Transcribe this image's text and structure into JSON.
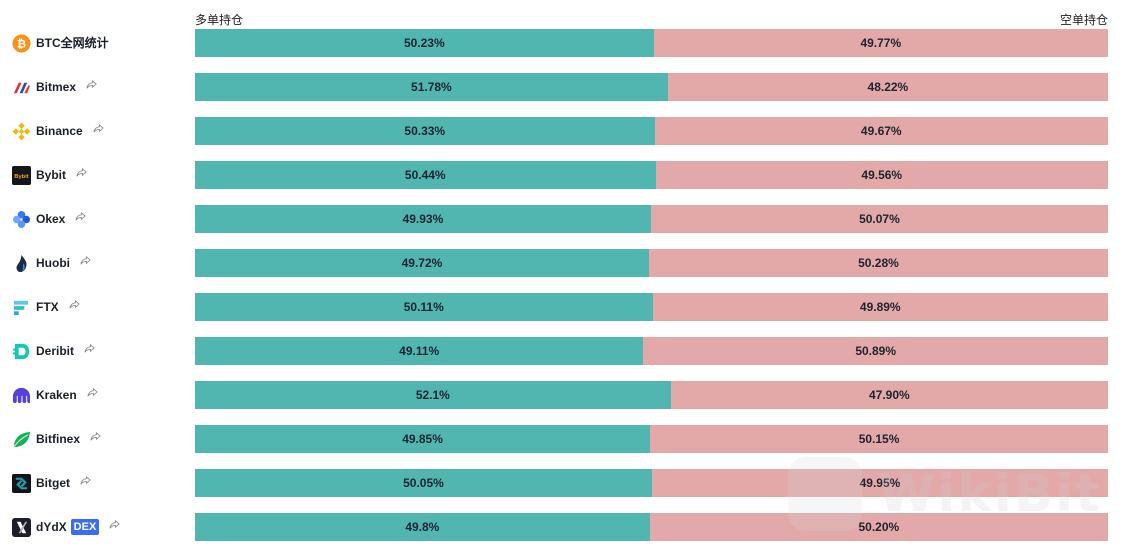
{
  "header": {
    "long_label": "多单持仓",
    "short_label": "空单持仓"
  },
  "watermark": {
    "text": "WikiBit"
  },
  "colors": {
    "long": "#52b6b0",
    "short": "#e3a9a9",
    "dex_badge": "#3a6df0"
  },
  "rows": [
    {
      "name": "BTC全网统计",
      "icon": "bitcoin-icon",
      "long_pct": 50.23,
      "long_text": "50.23%",
      "short_text": "49.77%",
      "share": false
    },
    {
      "name": "Bitmex",
      "icon": "bitmex-icon",
      "long_pct": 51.78,
      "long_text": "51.78%",
      "short_text": "48.22%",
      "share": true
    },
    {
      "name": "Binance",
      "icon": "binance-icon",
      "long_pct": 50.33,
      "long_text": "50.33%",
      "short_text": "49.67%",
      "share": true
    },
    {
      "name": "Bybit",
      "icon": "bybit-icon",
      "long_pct": 50.44,
      "long_text": "50.44%",
      "short_text": "49.56%",
      "share": true
    },
    {
      "name": "Okex",
      "icon": "okex-icon",
      "long_pct": 49.93,
      "long_text": "49.93%",
      "short_text": "50.07%",
      "share": true
    },
    {
      "name": "Huobi",
      "icon": "huobi-icon",
      "long_pct": 49.72,
      "long_text": "49.72%",
      "short_text": "50.28%",
      "share": true
    },
    {
      "name": "FTX",
      "icon": "ftx-icon",
      "long_pct": 50.11,
      "long_text": "50.11%",
      "short_text": "49.89%",
      "share": true
    },
    {
      "name": "Deribit",
      "icon": "deribit-icon",
      "long_pct": 49.11,
      "long_text": "49.11%",
      "short_text": "50.89%",
      "share": true
    },
    {
      "name": "Kraken",
      "icon": "kraken-icon",
      "long_pct": 52.1,
      "long_text": "52.1%",
      "short_text": "47.90%",
      "share": true
    },
    {
      "name": "Bitfinex",
      "icon": "bitfinex-icon",
      "long_pct": 49.85,
      "long_text": "49.85%",
      "short_text": "50.15%",
      "share": true
    },
    {
      "name": "Bitget",
      "icon": "bitget-icon",
      "long_pct": 50.05,
      "long_text": "50.05%",
      "short_text": "49.95%",
      "share": true
    },
    {
      "name": "dYdX",
      "icon": "dydx-icon",
      "badge": "DEX",
      "long_pct": 49.8,
      "long_text": "49.8%",
      "short_text": "50.20%",
      "share": true
    }
  ]
}
